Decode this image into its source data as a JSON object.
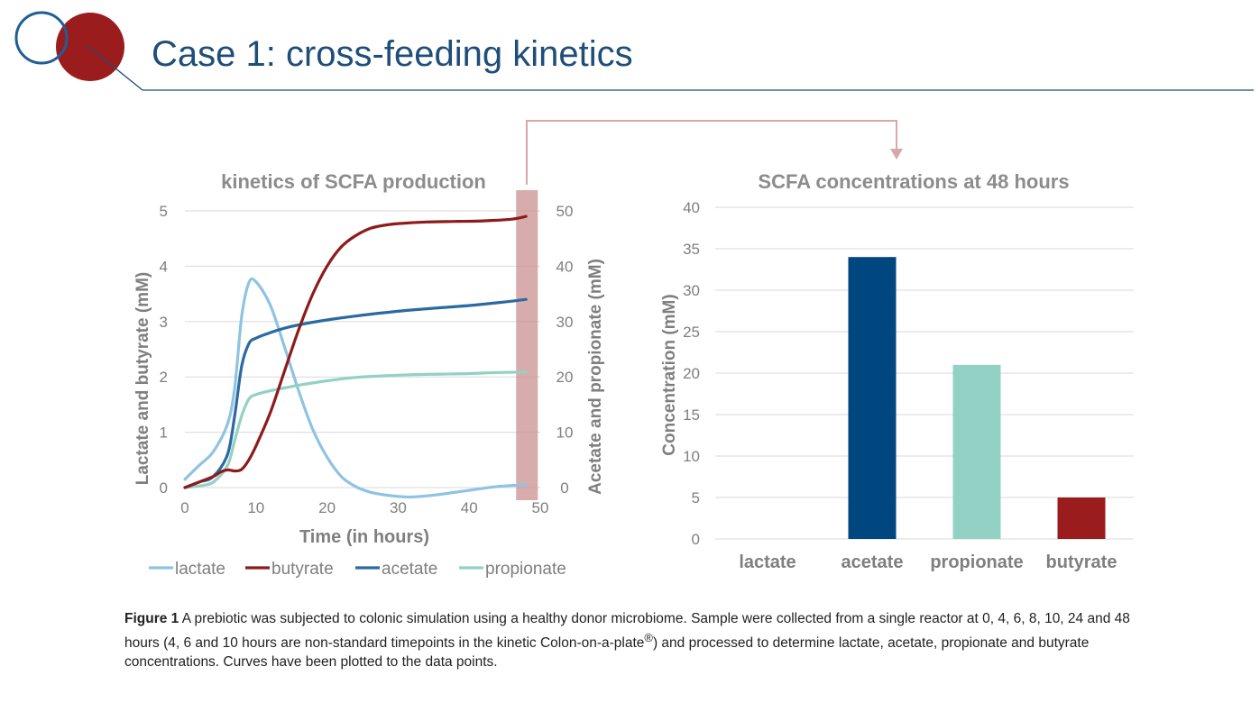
{
  "slide": {
    "title": "Case 1: cross-feeding kinetics"
  },
  "caption": {
    "label": "Figure 1",
    "text_before_mark": " A prebiotic was subjected to colonic simulation using a healthy donor microbiome. Sample were collected from a single reactor at 0, 4, 6, 8, 10, 24 and 48 hours (4, 6 and 10 hours are non-standard timepoints in the kinetic Colon-on-a-plate",
    "mark": "®",
    "text_after_mark": ") and processed to determine lactate, acetate, propionate and butyrate concentrations. Curves have been plotted to the data points."
  },
  "colors": {
    "lactate": "#8fc3e3",
    "butyrate": "#8e1b1b",
    "acetate": "#2b6aa0",
    "propionate": "#93d1c4",
    "bar_acetate": "#00467f",
    "bar_propionate": "#93d1c4",
    "bar_butyrate": "#9b1c1c",
    "highlight": "#c98c8c",
    "title_blue": "#1f4e79",
    "logo_red": "#9b1c1c"
  },
  "chart_data": [
    {
      "type": "line",
      "title": "kinetics of SCFA production",
      "xlabel": "Time (in hours)",
      "ylabel": "Lactate and butyrate (mM)",
      "y2label": "Acetate and propionate (mM)",
      "xlim": [
        0,
        50
      ],
      "ylim": [
        0,
        5
      ],
      "y2lim": [
        0,
        50
      ],
      "x_ticks": [
        0,
        10,
        20,
        30,
        40,
        50
      ],
      "y_ticks": [
        0,
        1,
        2,
        3,
        4,
        5
      ],
      "y2_ticks": [
        0,
        10,
        20,
        30,
        40,
        50
      ],
      "legend": [
        "lactate",
        "butyrate",
        "acetate",
        "propionate"
      ],
      "legend_position": "bottom",
      "highlight_x": 48,
      "series": [
        {
          "name": "lactate",
          "axis": "left",
          "x": [
            0,
            2,
            4,
            6,
            7,
            8,
            9,
            10,
            12,
            14,
            16,
            18,
            20,
            22,
            24,
            26,
            28,
            30,
            32,
            34,
            36,
            40,
            44,
            48
          ],
          "y": [
            0.15,
            0.4,
            0.65,
            1.15,
            1.8,
            3.1,
            3.7,
            3.72,
            3.3,
            2.55,
            1.75,
            1.05,
            0.55,
            0.2,
            0.02,
            -0.08,
            -0.13,
            -0.16,
            -0.17,
            -0.15,
            -0.12,
            -0.05,
            0.02,
            0.05
          ]
        },
        {
          "name": "butyrate",
          "axis": "left",
          "x": [
            0,
            2,
            4,
            5,
            6,
            7,
            8,
            9,
            10,
            12,
            14,
            16,
            18,
            20,
            22,
            24,
            26,
            28,
            30,
            34,
            38,
            42,
            46,
            48
          ],
          "y": [
            0.0,
            0.1,
            0.2,
            0.28,
            0.32,
            0.3,
            0.33,
            0.5,
            0.75,
            1.35,
            2.1,
            2.85,
            3.5,
            4.0,
            4.35,
            4.55,
            4.68,
            4.74,
            4.77,
            4.8,
            4.81,
            4.82,
            4.85,
            4.9
          ]
        },
        {
          "name": "acetate",
          "axis": "right",
          "x": [
            0,
            2,
            4,
            6,
            7,
            8,
            9,
            10,
            12,
            14,
            16,
            20,
            24,
            28,
            32,
            36,
            40,
            44,
            48
          ],
          "y": [
            0.0,
            1.0,
            2.0,
            6.0,
            13.0,
            22.0,
            26.0,
            27.0,
            28.0,
            28.8,
            29.4,
            30.3,
            31.0,
            31.6,
            32.1,
            32.5,
            32.9,
            33.4,
            34.0
          ]
        },
        {
          "name": "propionate",
          "axis": "right",
          "x": [
            0,
            2,
            4,
            6,
            7,
            8,
            9,
            10,
            12,
            14,
            16,
            20,
            24,
            28,
            32,
            36,
            40,
            44,
            48
          ],
          "y": [
            0.0,
            0.3,
            1.0,
            4.0,
            8.5,
            13.0,
            16.0,
            16.8,
            17.5,
            18.0,
            18.5,
            19.3,
            19.9,
            20.2,
            20.4,
            20.5,
            20.6,
            20.8,
            20.9
          ]
        }
      ]
    },
    {
      "type": "bar",
      "title": "SCFA concentrations at 48 hours",
      "ylabel": "Concentration (mM)",
      "categories": [
        "lactate",
        "acetate",
        "propionate",
        "butyrate"
      ],
      "values": [
        0,
        34,
        21,
        5
      ],
      "ylim": [
        0,
        40
      ],
      "y_ticks": [
        0,
        5,
        10,
        15,
        20,
        25,
        30,
        35,
        40
      ]
    }
  ]
}
